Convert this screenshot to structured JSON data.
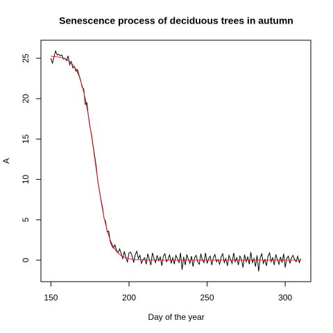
{
  "chart_data": {
    "type": "line",
    "title": "Senescence process of deciduous trees in autumn",
    "xlabel": "Day of the year",
    "ylabel": "A",
    "xlim": [
      143.6,
      316.4
    ],
    "xticks": [
      150,
      200,
      250,
      300
    ],
    "ylim": [
      -2.66,
      27.23
    ],
    "yticks": [
      0,
      5,
      10,
      15,
      20,
      25
    ],
    "series": [
      {
        "color": "#000000",
        "x": [
          150,
          151,
          152,
          153,
          154,
          155,
          156,
          157,
          158,
          159,
          160,
          161,
          162,
          163,
          164,
          165,
          166,
          167,
          168,
          169,
          170,
          171,
          172,
          173,
          174,
          175,
          176,
          177,
          178,
          179,
          180,
          181,
          182,
          183,
          184,
          185,
          186,
          187,
          188,
          189,
          190,
          191,
          192,
          193,
          194,
          195,
          196,
          197,
          198,
          199,
          200,
          201,
          202,
          203,
          204,
          205,
          206,
          207,
          208,
          209,
          210,
          211,
          212,
          213,
          214,
          215,
          216,
          217,
          218,
          219,
          220,
          221,
          222,
          223,
          224,
          225,
          226,
          227,
          228,
          229,
          230,
          231,
          232,
          233,
          234,
          235,
          236,
          237,
          238,
          239,
          240,
          241,
          242,
          243,
          244,
          245,
          246,
          247,
          248,
          249,
          250,
          251,
          252,
          253,
          254,
          255,
          256,
          257,
          258,
          259,
          260,
          261,
          262,
          263,
          264,
          265,
          266,
          267,
          268,
          269,
          270,
          271,
          272,
          273,
          274,
          275,
          276,
          277,
          278,
          279,
          280,
          281,
          282,
          283,
          284,
          285,
          286,
          287,
          288,
          289,
          290,
          291,
          292,
          293,
          294,
          295,
          296,
          297,
          298,
          299,
          300,
          301,
          302,
          303,
          304,
          305,
          306,
          307,
          308,
          309,
          310
        ],
        "values": [
          25.0,
          24.4,
          25.2,
          25.9,
          25.4,
          25.5,
          25.3,
          25.4,
          24.9,
          25.0,
          24.7,
          25.3,
          24.2,
          24.6,
          23.8,
          24.0,
          23.4,
          23.6,
          22.9,
          22.3,
          21.4,
          21.2,
          19.3,
          19.5,
          17.8,
          16.5,
          15.6,
          14.2,
          12.9,
          11.6,
          9.8,
          8.7,
          7.5,
          6.6,
          5.2,
          4.8,
          3.5,
          3.6,
          2.3,
          1.8,
          1.5,
          1.9,
          1.2,
          0.9,
          1.4,
          0.8,
          0.2,
          1.1,
          0.3,
          -0.2,
          0.9,
          1.0,
          0.5,
          -0.3,
          0.7,
          1.1,
          0.2,
          0.6,
          -0.4,
          0.1,
          0.3,
          -0.5,
          0.8,
          0.1,
          -0.6,
          0.9,
          0.2,
          -0.3,
          0.6,
          -0.1,
          0.4,
          -0.7,
          0.5,
          0.8,
          -0.2,
          0.1,
          0.7,
          -0.4,
          0.3,
          -0.5,
          0.6,
          0.2,
          -0.3,
          0.9,
          -1.2,
          0.4,
          -0.6,
          0.7,
          0.1,
          -0.4,
          0.5,
          -0.8,
          0.3,
          0.6,
          -0.2,
          -0.5,
          0.8,
          0.0,
          -0.3,
          0.9,
          -0.4,
          0.2,
          0.5,
          -0.6,
          0.3,
          0.7,
          -0.2,
          0.1,
          -0.5,
          0.4,
          0.8,
          -0.3,
          0.2,
          -0.7,
          0.6,
          0.1,
          -0.4,
          0.9,
          -0.2,
          0.3,
          -0.6,
          0.5,
          0.1,
          -0.9,
          0.7,
          -0.2,
          0.4,
          -0.5,
          1.0,
          -0.3,
          0.2,
          -0.8,
          0.6,
          -1.4,
          0.3,
          0.8,
          -0.4,
          0.1,
          -0.7,
          0.5,
          0.9,
          -0.2,
          0.3,
          -0.6,
          0.7,
          0.1,
          -0.5,
          0.4,
          -0.3,
          0.8,
          -0.9,
          0.2,
          0.5,
          -0.4,
          0.3,
          0.6,
          0.1,
          -0.2,
          0.5,
          -0.3,
          0.2
        ]
      },
      {
        "color": "#e41a1c",
        "x": [
          150,
          152,
          154,
          156,
          158,
          160,
          162,
          164,
          166,
          168,
          170,
          172,
          174,
          176,
          178,
          180,
          182,
          184,
          186,
          188,
          190,
          192,
          194,
          196,
          198,
          200,
          202,
          204,
          206,
          208,
          210,
          212,
          214,
          216,
          218,
          220,
          222,
          224,
          226,
          228,
          230,
          232,
          234,
          236,
          238,
          240,
          242,
          244,
          246,
          248,
          250,
          252,
          254,
          256,
          258,
          260,
          262,
          264,
          266,
          268,
          270,
          272,
          274,
          276,
          278,
          280,
          282,
          284,
          286,
          288,
          290,
          292,
          294,
          296,
          298,
          300,
          302,
          304,
          306,
          308,
          310
        ],
        "values": [
          25.25,
          25.22,
          25.18,
          25.11,
          25.0,
          24.85,
          24.6,
          24.2,
          23.66,
          22.8,
          21.6,
          20.0,
          17.9,
          15.4,
          12.65,
          9.9,
          7.4,
          5.3,
          3.67,
          2.47,
          1.64,
          1.08,
          0.7,
          0.46,
          0.29,
          0.19,
          0.12,
          0.08,
          0.05,
          0.03,
          0.02,
          0.01,
          0.01,
          0.01,
          0.01,
          0.01,
          0,
          0,
          0,
          0,
          0,
          0,
          0,
          0,
          0,
          0,
          0,
          0,
          0,
          0,
          0,
          0,
          0,
          0,
          0,
          0,
          0,
          0,
          0,
          0,
          0,
          0,
          0,
          0,
          0,
          0,
          0,
          0,
          0,
          0,
          0,
          0,
          0,
          0,
          0,
          0,
          0,
          0,
          0,
          0,
          0
        ]
      }
    ]
  }
}
